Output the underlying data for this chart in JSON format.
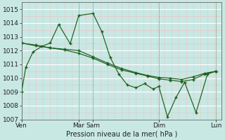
{
  "background_color": "#c8e8e4",
  "grid_major_color": "#ffffff",
  "grid_minor_color": "#e8c8c8",
  "line_color": "#1a5e1a",
  "ylim": [
    1007,
    1015.5
  ],
  "yticks": [
    1007,
    1008,
    1009,
    1010,
    1011,
    1012,
    1013,
    1014,
    1015
  ],
  "xlabel": "Pression niveau de la mer( hPa )",
  "xtick_positions": [
    0,
    20,
    25,
    48,
    68
  ],
  "xtick_labels": [
    "Ven",
    "Mar",
    "Sam",
    "Dim",
    "Lun"
  ],
  "xlim": [
    0,
    70
  ],
  "vlines": [
    0,
    20,
    25,
    48,
    68
  ],
  "line1_x": [
    0,
    1.5,
    4,
    7,
    10,
    13,
    17,
    20,
    25,
    28,
    31,
    34,
    37,
    40,
    43,
    46,
    48,
    51,
    54,
    57,
    61,
    65,
    68
  ],
  "line1_y": [
    1009.0,
    1010.8,
    1011.9,
    1012.3,
    1012.55,
    1013.9,
    1012.5,
    1014.55,
    1014.7,
    1013.4,
    1011.5,
    1010.3,
    1009.5,
    1009.3,
    1009.6,
    1009.2,
    1009.4,
    1007.2,
    1008.6,
    1009.7,
    1007.5,
    1010.3,
    1010.5
  ],
  "line2_x": [
    0,
    5,
    10,
    15,
    20,
    25,
    30,
    35,
    40,
    44,
    48,
    52,
    56,
    60,
    64,
    68
  ],
  "line2_y": [
    1012.55,
    1012.35,
    1012.2,
    1012.1,
    1012.0,
    1011.55,
    1011.1,
    1010.7,
    1010.4,
    1010.2,
    1010.05,
    1010.0,
    1009.9,
    1010.1,
    1010.35,
    1010.5
  ],
  "line3_x": [
    0,
    5,
    10,
    15,
    20,
    25,
    30,
    35,
    40,
    44,
    48,
    52,
    56,
    60,
    64,
    68
  ],
  "line3_y": [
    1012.55,
    1012.4,
    1012.2,
    1012.05,
    1011.8,
    1011.45,
    1011.0,
    1010.6,
    1010.35,
    1010.15,
    1009.95,
    1009.85,
    1009.75,
    1009.9,
    1010.3,
    1010.5
  ]
}
